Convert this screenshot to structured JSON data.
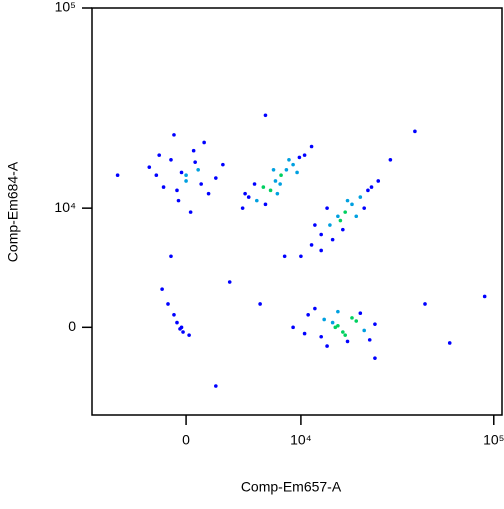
{
  "chart_data": {
    "type": "scatter",
    "x_label": "Comp-Em657-A",
    "y_label": "Comp-Em684-A",
    "xscale": "asinh",
    "yscale": "asinh",
    "xlim": [
      -7500,
      110000
    ],
    "ylim": [
      -6500,
      100000
    ],
    "xticks": [
      0,
      {
        "value": 10000,
        "label": "10⁴"
      },
      {
        "value": 100000,
        "label": "10⁵"
      }
    ],
    "yticks": [
      0,
      {
        "value": 10000,
        "label": "10⁴"
      },
      {
        "value": 100000,
        "label": "10⁵"
      }
    ],
    "color": "#0000ff",
    "x": [
      -2000,
      -1000,
      0,
      800,
      1500,
      -1500,
      500,
      -500,
      2500,
      -2500,
      1200,
      -800,
      300,
      2000,
      -300,
      1000,
      -1800,
      600,
      0,
      -600,
      4000,
      4500,
      5200,
      5800,
      6500,
      7000,
      7600,
      8200,
      9000,
      9800,
      10500,
      11500,
      5000,
      6000,
      7200,
      8500,
      6800,
      7500,
      9500,
      4200,
      10000,
      11500,
      13000,
      14500,
      16000,
      17500,
      19000,
      21000,
      23000,
      26000,
      12000,
      15000,
      18000,
      20000,
      14000,
      17000,
      22000,
      13000,
      16500,
      24000,
      9000,
      11000,
      13000,
      15000,
      17000,
      19000,
      22000,
      25000,
      12000,
      14000,
      16000,
      18000,
      20000,
      10500,
      15500,
      13500,
      17500,
      21000,
      23500,
      16000,
      -400,
      -300,
      -600,
      -200,
      -800,
      200,
      -1200,
      -1600,
      -5000,
      3000,
      5500,
      8000,
      30000,
      40000,
      60000,
      90000,
      2000,
      -1000,
      6000,
      25000,
      45000
    ],
    "y": [
      15000,
      18000,
      14000,
      16000,
      12000,
      13000,
      20000,
      11000,
      17000,
      16500,
      22000,
      24000,
      9500,
      14500,
      15500,
      13500,
      19000,
      17500,
      15000,
      12500,
      10000,
      11500,
      11000,
      13000,
      12500,
      14000,
      15000,
      16000,
      17000,
      18500,
      19000,
      21000,
      13500,
      10500,
      12000,
      18000,
      16000,
      13500,
      15500,
      12000,
      5000,
      6000,
      7000,
      8000,
      9000,
      9500,
      10500,
      11500,
      12500,
      14000,
      8000,
      6500,
      11000,
      9000,
      10000,
      7500,
      10000,
      5500,
      8500,
      13000,
      0,
      800,
      -600,
      300,
      -300,
      600,
      -200,
      200,
      1200,
      -1200,
      1000,
      -900,
      400,
      -400,
      0,
      500,
      -500,
      900,
      -800,
      100,
      -100,
      0,
      300,
      -300,
      800,
      -500,
      1500,
      2500,
      15000,
      3000,
      1500,
      5000,
      18000,
      25000,
      -1000,
      2000,
      -4000,
      5000,
      30000,
      -2000,
      1500
    ]
  }
}
